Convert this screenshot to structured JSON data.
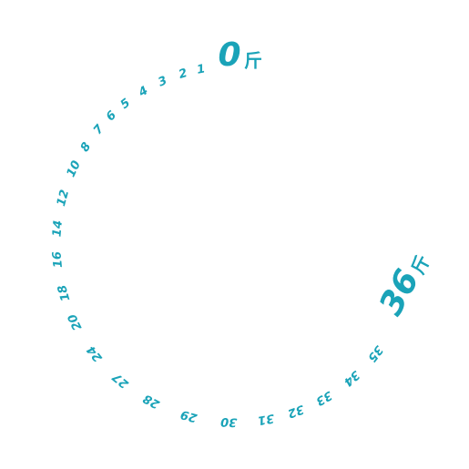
{
  "dial": {
    "accent_color": "#1aa3b8",
    "unit": "斤",
    "start": {
      "value": "0"
    },
    "end": {
      "value": "36"
    },
    "ticks": [
      "1",
      "2",
      "3",
      "4",
      "5",
      "6",
      "7",
      "8",
      "10",
      "12",
      "14",
      "16",
      "18",
      "20",
      "24",
      "27",
      "28",
      "29",
      "30",
      "31",
      "32",
      "33",
      "34",
      "35"
    ]
  }
}
